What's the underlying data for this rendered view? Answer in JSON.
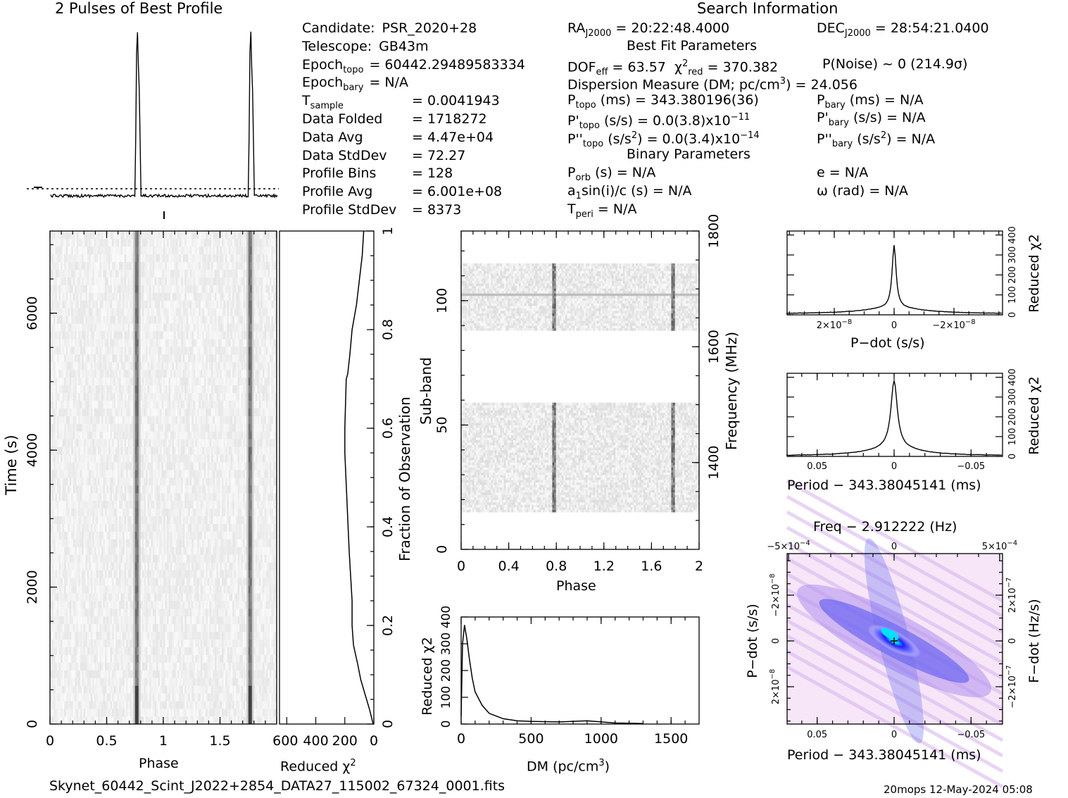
{
  "profile_title": "2 Pulses of Best Profile",
  "search_title": "Search Information",
  "footer": {
    "filename": "Skynet_60442_Scint_J2022+2854_DATA27_115002_67324_0001.fits",
    "stamp": "20mops 12-May-2024 05:08"
  },
  "info_col1": [
    {
      "label": "Candidate:",
      "value": "PSR_2020+28"
    },
    {
      "label": "Telescope:",
      "value": "GB43m"
    },
    {
      "label": "Epoch",
      "sub": "topo",
      "value": "= 60442.29489583334"
    },
    {
      "label": "Epoch",
      "sub": "bary",
      "value": "= N/A"
    },
    {
      "label": "T",
      "sub": "sample",
      "value": "=   0.0041943"
    },
    {
      "label": "Data Folded",
      "value": "=   1718272"
    },
    {
      "label": "Data Avg",
      "value": "=   4.47e+04"
    },
    {
      "label": "Data StdDev",
      "value": "=   72.27"
    },
    {
      "label": "Profile Bins",
      "value": "=   128"
    },
    {
      "label": "Profile Avg",
      "value": "=   6.001e+08"
    },
    {
      "label": "Profile StdDev",
      "value": "=   8373"
    }
  ],
  "info_mid": {
    "ra": "RA",
    "ra_sub": "J2000",
    "ra_val": "= 20:22:48.4000",
    "dec": "DEC",
    "dec_sub": "J2000",
    "dec_val": "= 28:54:21.0400",
    "best_fit": "Best Fit Parameters",
    "dof": "DOF",
    "dof_sub": "eff",
    "dof_val": "= 63.57",
    "chi": "χ",
    "chi_sup": "2",
    "chi_sub": "red",
    "chi_val": "= 370.382",
    "pnoise": "P(Noise) ~ 0    (214.9σ)",
    "dm_line": "Dispersion Measure (DM; pc/cm",
    "dm_sup": "3",
    "dm_end": ") = 24.056",
    "ptopo": "P",
    "ptopo_sub": "topo",
    "ptopo_val": "(ms) =  343.380196(36)",
    "pbary": "P",
    "pbary_sub": "bary",
    "pbary_val": "(ms) = N/A",
    "pdtopo": "P'",
    "pdtopo_sub": "topo",
    "pdtopo_val": "(s/s) = 0.0(3.8)x10",
    "pdtopo_exp": "−11",
    "pdbary": "P'",
    "pdbary_sub": "bary",
    "pdbary_val": "(s/s) = N/A",
    "pddtopo": "P''",
    "pddtopo_sub": "topo",
    "pddtopo_val": "(s/s",
    "pddtopo_sq": "2",
    "pddtopo_val2": ") = 0.0(3.4)x10",
    "pddtopo_exp": "−14",
    "pddbary": "P''",
    "pddbary_sub": "bary",
    "pddbary_val": "(s/s",
    "pddbary_sq": "2",
    "pddbary_val2": ") = N/A",
    "binary": "Binary Parameters",
    "porb": "P",
    "porb_sub": "orb",
    "porb_val": "(s) = N/A",
    "asini": "a",
    "asini_sub": "1",
    "asini_val": "sin(i)/c (s) = N/A",
    "tperi": "T",
    "tperi_sub": "peri",
    "tperi_val": "= N/A",
    "ecc": "e = N/A",
    "omega": "ω (rad) = N/A"
  },
  "chart_data": [
    {
      "type": "line",
      "name_hint": "profile",
      "title": "2 Pulses of Best Profile",
      "x": [
        0,
        0.74,
        0.75,
        0.76,
        0.77,
        0.78,
        0.8,
        1.74,
        1.75,
        1.76,
        1.77,
        1.78,
        1.8,
        2
      ],
      "y": [
        0,
        0,
        0.6,
        1,
        0.85,
        0.5,
        0,
        0,
        0.6,
        1,
        0.85,
        0.5,
        0,
        0
      ],
      "xlim": [
        0,
        2
      ]
    },
    {
      "type": "heatmap",
      "name_hint": "time-phase",
      "xlabel": "Phase",
      "ylabel": "Time (s)",
      "ylabel_right": "Fraction of Observation",
      "xlim": [
        0,
        2
      ],
      "ylim": [
        0,
        7200
      ],
      "xticks": [
        "0",
        "0.5",
        "1",
        "1.5"
      ],
      "yticks": [
        "0",
        "2000",
        "4000",
        "6000"
      ],
      "yticks_right": [
        "0",
        "0.2",
        "0.4",
        "0.6",
        "0.8",
        "1"
      ],
      "pulse_phases": [
        0.76,
        1.76
      ]
    },
    {
      "type": "line",
      "name_hint": "time-chi",
      "xlabel": "Reduced χ",
      "xlabel_sup": "2",
      "xticks": [
        "600",
        "400",
        "200",
        "0"
      ],
      "x": [
        5,
        30,
        60,
        90,
        110,
        140,
        150,
        150,
        170,
        185,
        200,
        200,
        195,
        190,
        180,
        165,
        150,
        120,
        100,
        80,
        70
      ],
      "y": [
        0,
        0.03,
        0.06,
        0.09,
        0.12,
        0.16,
        0.2,
        0.25,
        0.35,
        0.45,
        0.55,
        0.6,
        0.65,
        0.7,
        0.71,
        0.75,
        0.8,
        0.85,
        0.9,
        0.95,
        1.0
      ]
    },
    {
      "type": "heatmap",
      "name_hint": "subband",
      "xlabel": "Phase",
      "ylabel": "Sub-band",
      "ylabel_right": "Frequency (MHz)",
      "xticks": [
        "0",
        "0.4",
        "0.8",
        "1.2",
        "1.6",
        "2"
      ],
      "yticks": [
        "0",
        "50",
        "100"
      ],
      "yticks_right": [
        "1400",
        "1600",
        "1800"
      ],
      "bands": [
        [
          15,
          59
        ],
        [
          88,
          115
        ]
      ],
      "pulse_phases": [
        0.77,
        1.77
      ]
    },
    {
      "type": "line",
      "name_hint": "dm-chi",
      "xlabel": "DM (pc/cm",
      "xlabel_sup": "3",
      "xlabel_end": ")",
      "ylabel": "Reduced χ",
      "ylabel_sup": "2",
      "xticks": [
        "0",
        "500",
        "1000",
        "1500"
      ],
      "yticks": [
        "0",
        "100",
        "200",
        "300",
        "400"
      ],
      "x": [
        0,
        10,
        24,
        40,
        60,
        80,
        100,
        150,
        200,
        300,
        400,
        500,
        700,
        900,
        1100,
        1300
      ],
      "y": [
        30,
        300,
        370,
        320,
        240,
        170,
        120,
        70,
        40,
        20,
        12,
        10,
        8,
        12,
        4,
        2
      ]
    },
    {
      "type": "line",
      "name_hint": "pdot-chi",
      "xlabel": "P−dot (s/s)",
      "ylabel": "Reduced χ",
      "ylabel_sup": "2",
      "xticks": [
        "2×10",
        "0",
        "−2×10"
      ],
      "xtick_exp": "−8",
      "yticks": [
        "0",
        "100",
        "200",
        "300",
        "400"
      ],
      "x": [
        -3.5,
        -2,
        -1,
        -0.5,
        -0.2,
        0,
        0.2,
        0.5,
        1,
        2,
        3.5
      ],
      "y": [
        8,
        15,
        30,
        60,
        150,
        370,
        150,
        60,
        30,
        15,
        8
      ]
    },
    {
      "type": "line",
      "name_hint": "period-chi",
      "xlabel": "Period − 343.38045141 (ms)",
      "ylabel": "Reduced χ",
      "ylabel_sup": "2",
      "xticks": [
        "0.05",
        "0",
        "−0.05"
      ],
      "yticks": [
        "0",
        "100",
        "200",
        "300",
        "400"
      ],
      "x": [
        -0.07,
        -0.04,
        -0.02,
        -0.01,
        -0.005,
        0,
        0.005,
        0.01,
        0.02,
        0.04,
        0.07
      ],
      "y": [
        5,
        15,
        40,
        80,
        160,
        370,
        160,
        80,
        40,
        15,
        5
      ]
    },
    {
      "type": "heatmap",
      "name_hint": "ppdot",
      "title": "Freq − 2.912222 (Hz)",
      "xlabel": "Period − 343.38045141 (ms)",
      "ylabel": "P−dot (s/s)",
      "ylabel_right": "F−dot (Hz/s)",
      "xticks_top": [
        "−5×10",
        "0",
        "5×10"
      ],
      "xticks_top_exp": "−4",
      "xticks": [
        "0.05",
        "0",
        "−0.05"
      ],
      "yticks": [
        "2×10",
        "0",
        "−2×10"
      ],
      "ytick_exp": "−8",
      "yticks_right": [
        "−2×10",
        "0",
        "2×10"
      ],
      "ytick_right_exp": "−7"
    }
  ]
}
